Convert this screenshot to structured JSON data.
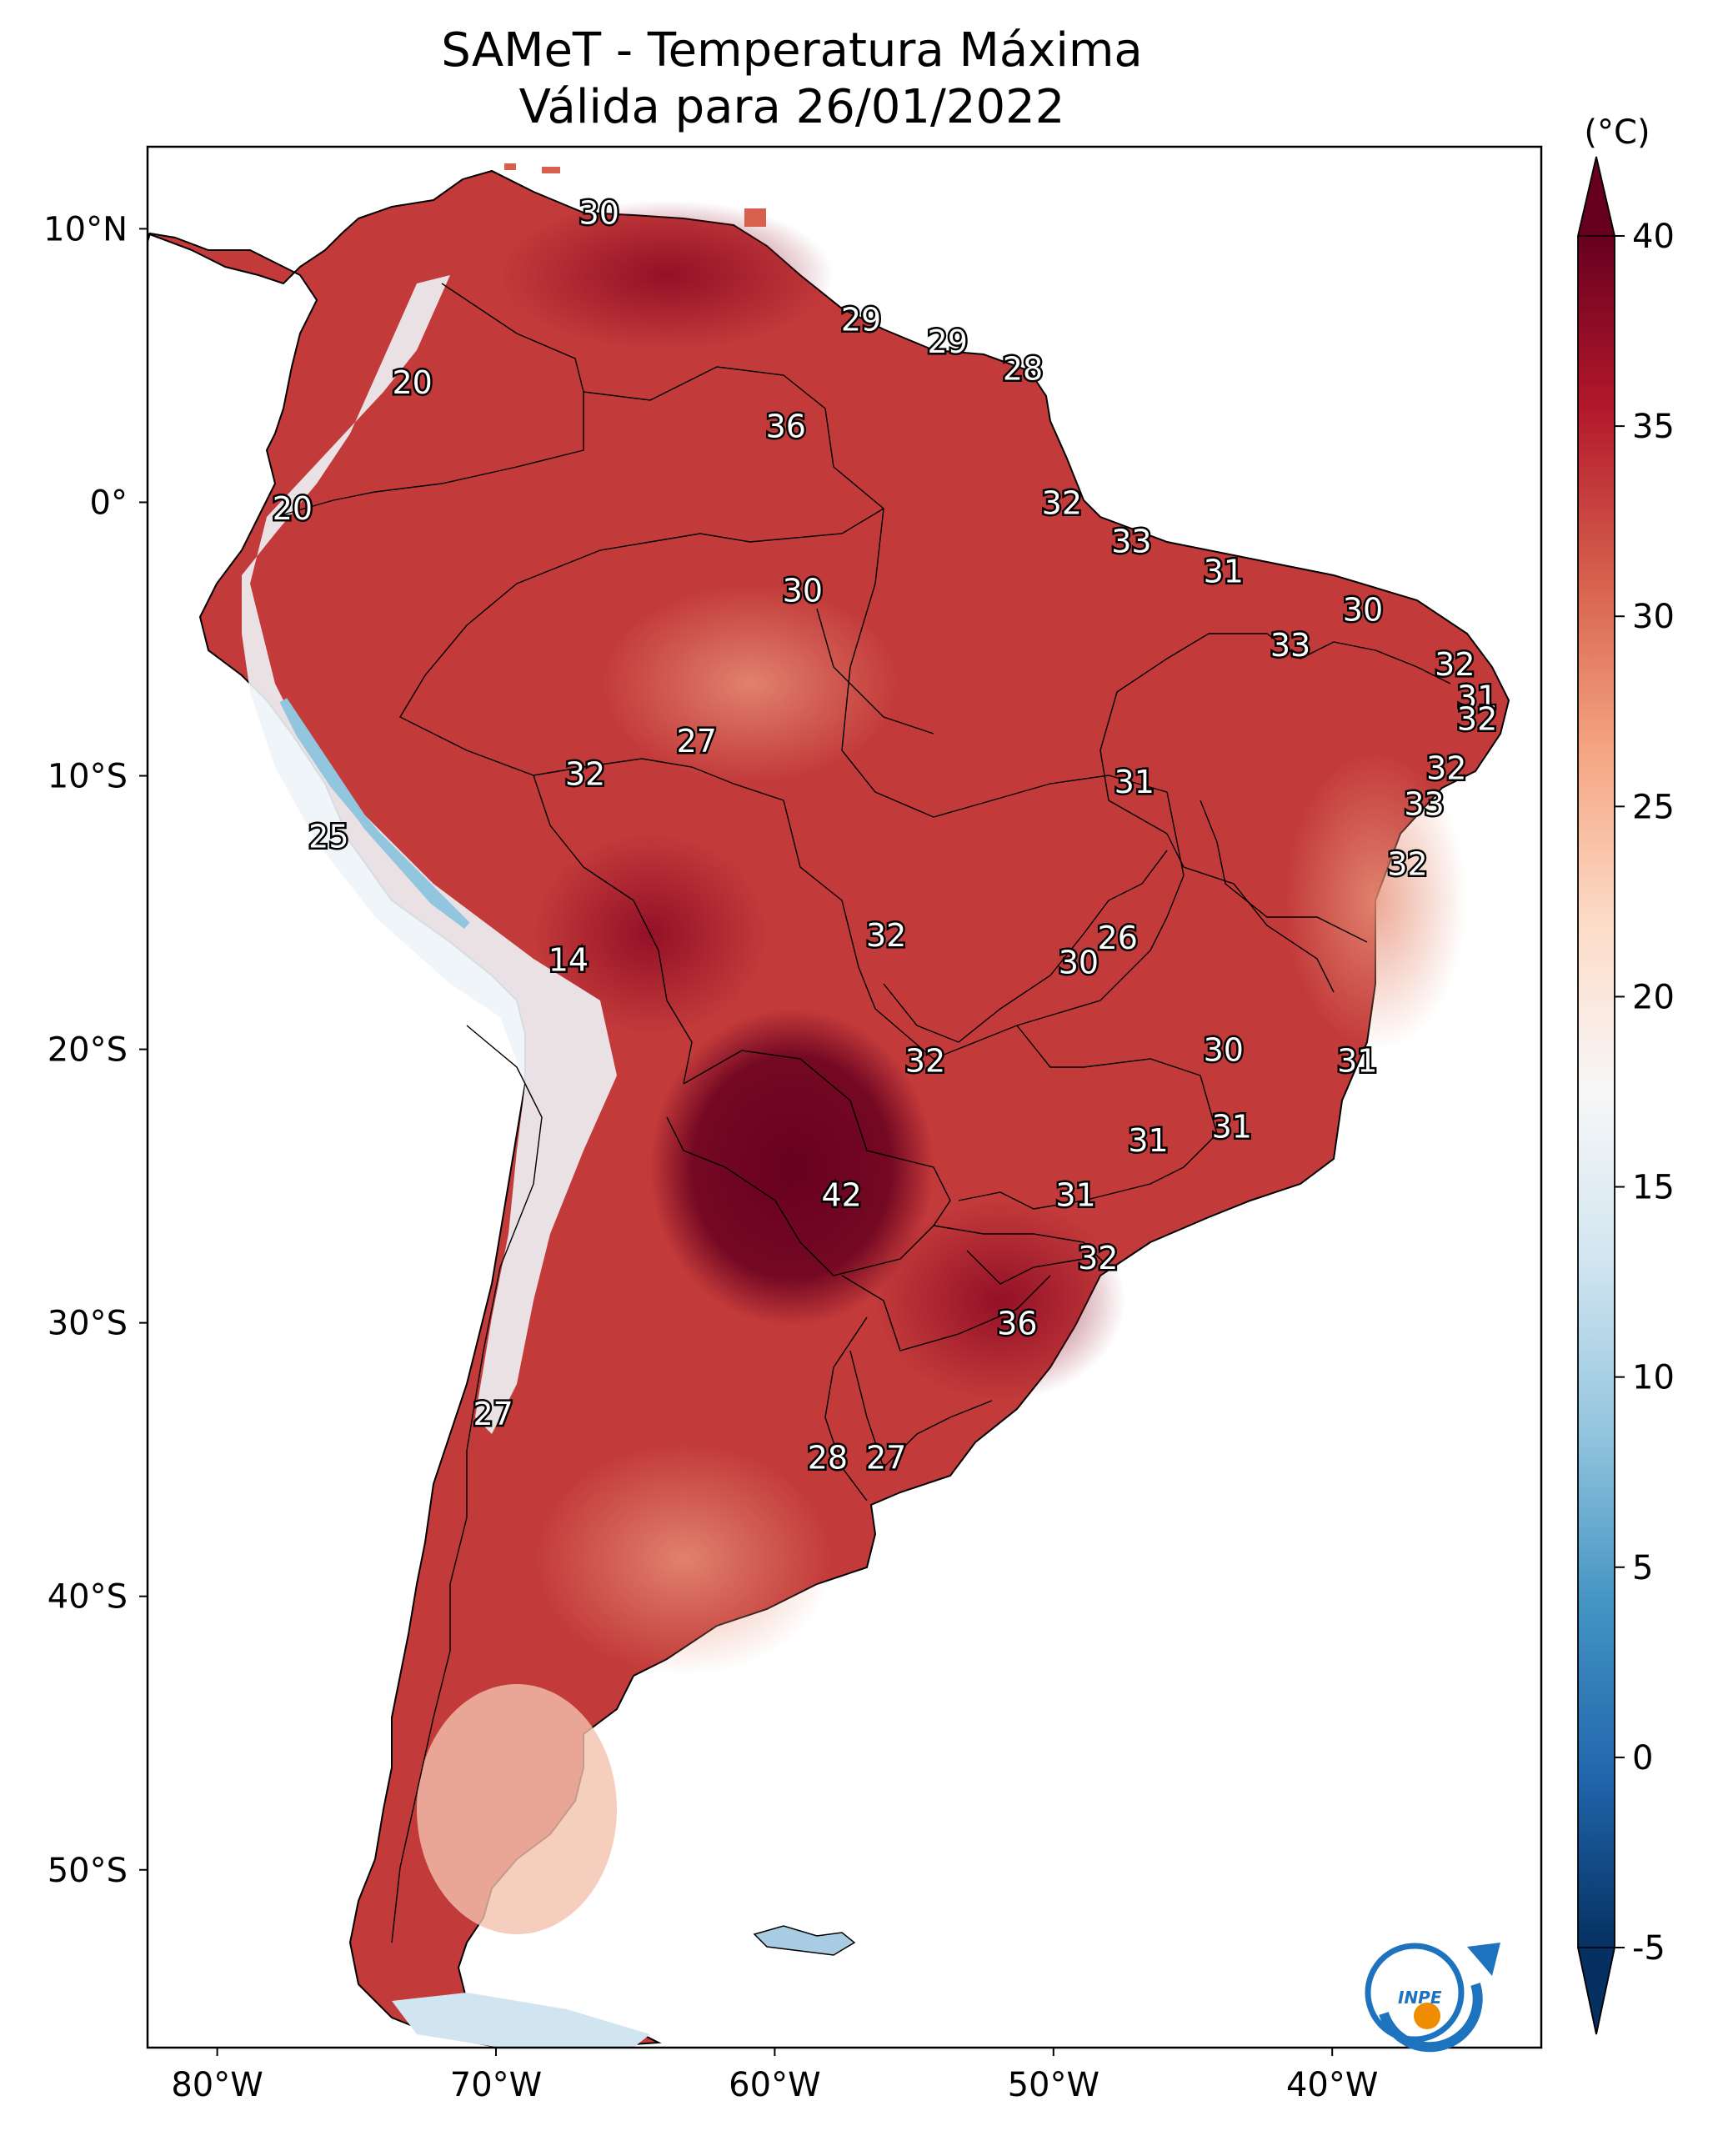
{
  "title": {
    "line1": "SAMeT - Temperatura Máxima",
    "line2": "Válida para 26/01/2022"
  },
  "colorbar": {
    "unit": "(°C)",
    "ticks": [
      "40",
      "35",
      "30",
      "25",
      "20",
      "15",
      "10",
      "5",
      "0",
      "-5"
    ],
    "range": [
      -5,
      40
    ],
    "colors": [
      "#053061",
      "#2166ac",
      "#4393c3",
      "#92c5de",
      "#d1e5f0",
      "#f7f7f7",
      "#fddbc7",
      "#f4a582",
      "#d6604d",
      "#b2182b",
      "#67001f"
    ]
  },
  "axes": {
    "lon_labels": [
      "80°W",
      "70°W",
      "60°W",
      "50°W",
      "40°W"
    ],
    "lat_labels": [
      "10°N",
      "0°",
      "10°S",
      "20°S",
      "30°S",
      "40°S",
      "50°S"
    ]
  },
  "map": {
    "ocean_color": "#ffffff",
    "border_color": "#000000",
    "extent": {
      "lon_min": -82.5,
      "lon_max": -32.5,
      "lat_min": -56.5,
      "lat_max": 13
    }
  },
  "temperature_labels": [
    {
      "text": "30",
      "lon": -66.3,
      "lat": 10.6
    },
    {
      "text": "29",
      "lon": -56.9,
      "lat": 6.7
    },
    {
      "text": "29",
      "lon": -53.8,
      "lat": 5.9
    },
    {
      "text": "28",
      "lon": -51.1,
      "lat": 4.9
    },
    {
      "text": "20",
      "lon": -73.0,
      "lat": 4.4
    },
    {
      "text": "36",
      "lon": -59.6,
      "lat": 2.8
    },
    {
      "text": "20",
      "lon": -77.3,
      "lat": -0.2
    },
    {
      "text": "32",
      "lon": -49.7,
      "lat": 0.0
    },
    {
      "text": "33",
      "lon": -47.2,
      "lat": -1.4
    },
    {
      "text": "30",
      "lon": -59.0,
      "lat": -3.2
    },
    {
      "text": "31",
      "lon": -43.9,
      "lat": -2.5
    },
    {
      "text": "30",
      "lon": -38.9,
      "lat": -3.9
    },
    {
      "text": "33",
      "lon": -41.5,
      "lat": -5.2
    },
    {
      "text": "32",
      "lon": -35.6,
      "lat": -5.9
    },
    {
      "text": "31",
      "lon": -34.8,
      "lat": -7.1
    },
    {
      "text": "32",
      "lon": -34.8,
      "lat": -7.9
    },
    {
      "text": "27",
      "lon": -62.8,
      "lat": -8.7
    },
    {
      "text": "32",
      "lon": -35.9,
      "lat": -9.7
    },
    {
      "text": "32",
      "lon": -66.8,
      "lat": -9.9
    },
    {
      "text": "31",
      "lon": -47.1,
      "lat": -10.2
    },
    {
      "text": "33",
      "lon": -36.7,
      "lat": -11.0
    },
    {
      "text": "25",
      "lon": -76.0,
      "lat": -12.2
    },
    {
      "text": "32",
      "lon": -37.3,
      "lat": -13.2
    },
    {
      "text": "32",
      "lon": -56.0,
      "lat": -15.8
    },
    {
      "text": "26",
      "lon": -47.7,
      "lat": -15.9
    },
    {
      "text": "30",
      "lon": -49.1,
      "lat": -16.8
    },
    {
      "text": "14",
      "lon": -67.4,
      "lat": -16.7
    },
    {
      "text": "30",
      "lon": -43.9,
      "lat": -20.0
    },
    {
      "text": "31",
      "lon": -39.1,
      "lat": -20.4
    },
    {
      "text": "32",
      "lon": -54.6,
      "lat": -20.4
    },
    {
      "text": "31",
      "lon": -46.6,
      "lat": -23.3
    },
    {
      "text": "31",
      "lon": -43.6,
      "lat": -22.8
    },
    {
      "text": "42",
      "lon": -57.6,
      "lat": -25.3
    },
    {
      "text": "31",
      "lon": -49.2,
      "lat": -25.3
    },
    {
      "text": "32",
      "lon": -48.4,
      "lat": -27.6
    },
    {
      "text": "36",
      "lon": -51.3,
      "lat": -30.0
    },
    {
      "text": "27",
      "lon": -70.1,
      "lat": -33.3
    },
    {
      "text": "28",
      "lon": -58.1,
      "lat": -34.9
    },
    {
      "text": "27",
      "lon": -56.0,
      "lat": -34.9
    }
  ],
  "logo": {
    "text": "INPE"
  }
}
